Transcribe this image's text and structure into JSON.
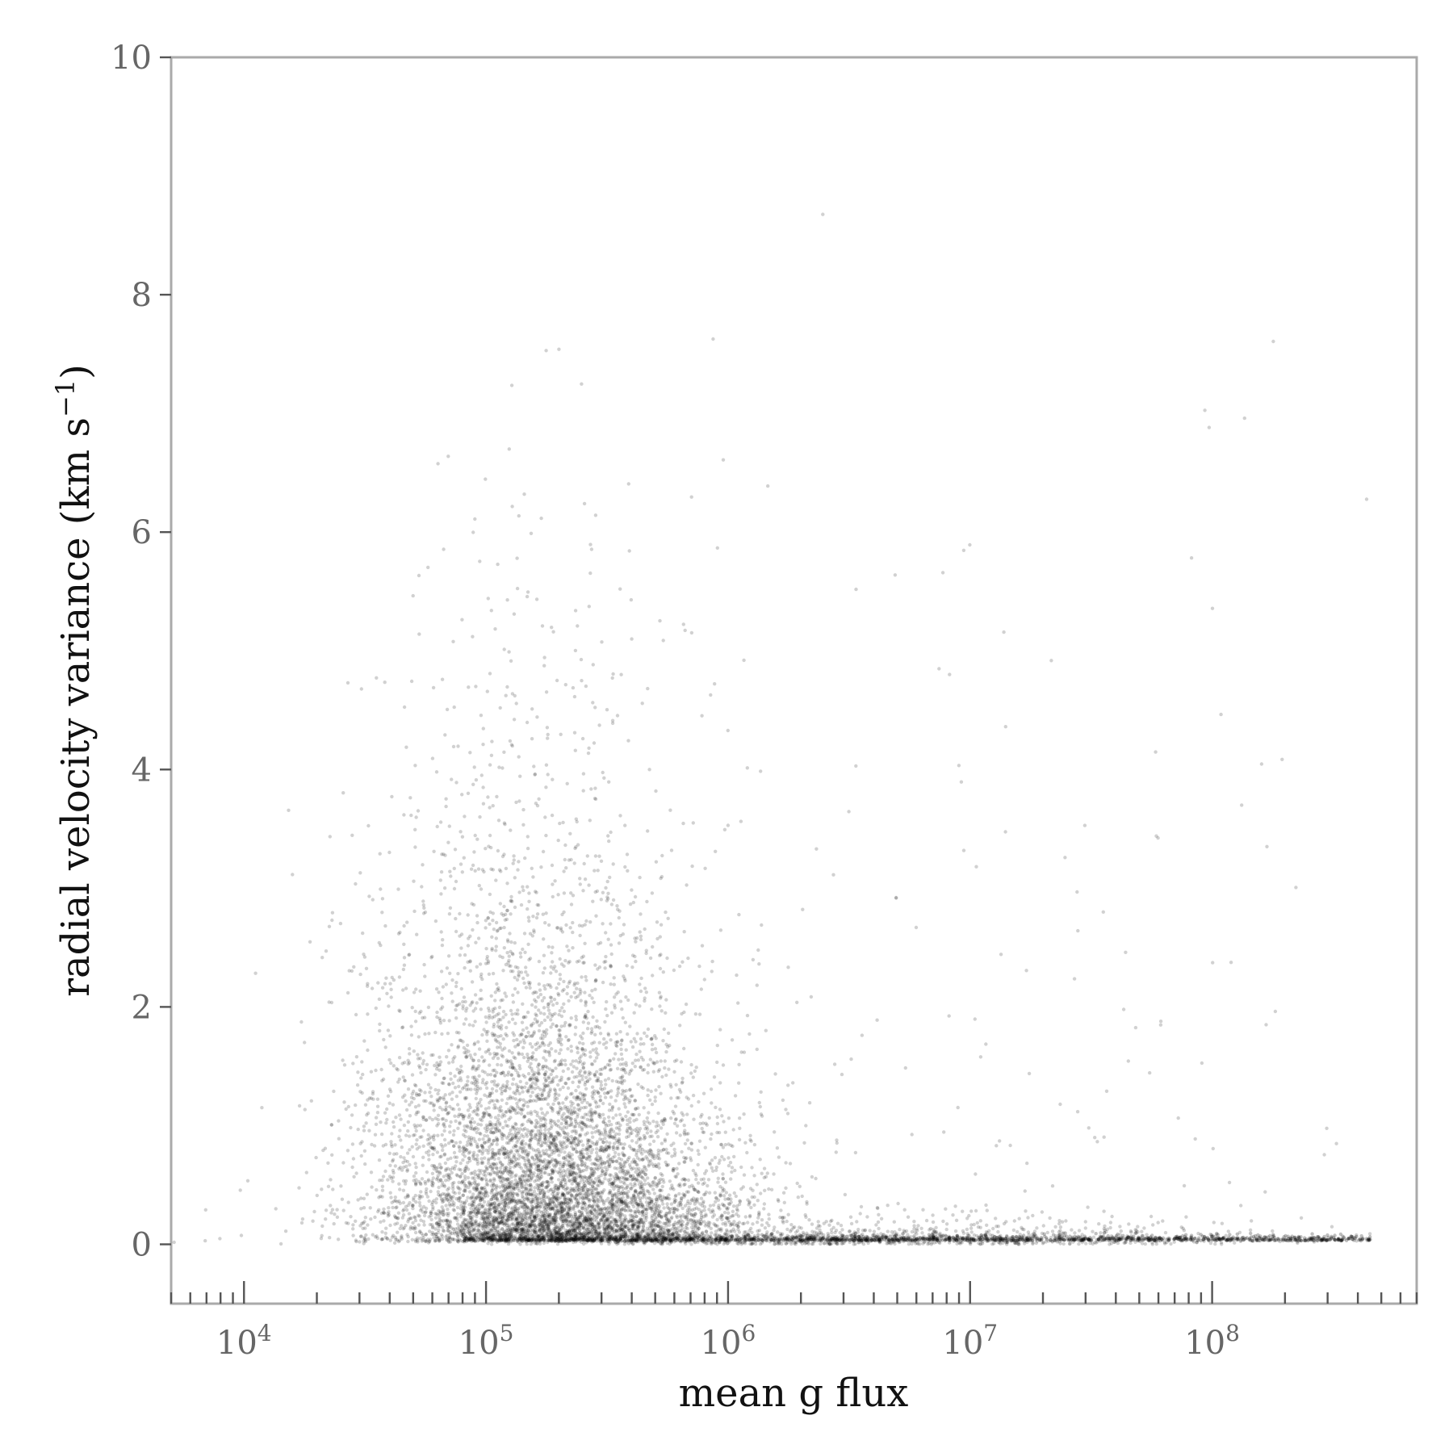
{
  "chart_data": {
    "type": "scatter",
    "title": "",
    "xlabel": "mean g flux",
    "ylabel_parts": {
      "main": "radial velocity variance (km s",
      "sup": "−1",
      "close": ")"
    },
    "x_scale": "log",
    "xlim": [
      5000,
      700000000
    ],
    "ylim": [
      -0.5,
      10
    ],
    "x_ticks": [
      {
        "value": 10000,
        "base": "10",
        "exp": "4"
      },
      {
        "value": 100000,
        "base": "10",
        "exp": "5"
      },
      {
        "value": 1000000,
        "base": "10",
        "exp": "6"
      },
      {
        "value": 10000000,
        "base": "10",
        "exp": "7"
      },
      {
        "value": 100000000,
        "base": "10",
        "exp": "8"
      }
    ],
    "y_ticks": [
      {
        "value": 0,
        "label": "0"
      },
      {
        "value": 2,
        "label": "2"
      },
      {
        "value": 4,
        "label": "4"
      },
      {
        "value": 6,
        "label": "6"
      },
      {
        "value": 8,
        "label": "8"
      },
      {
        "value": 10,
        "label": "10"
      }
    ],
    "grid": false,
    "legend": "none",
    "marker_color": "#000000",
    "series": [
      {
        "points_summary": "dense cloud of many faint points",
        "clusters": [
          {
            "x_center": 150000,
            "x_spread_dex": 0.33,
            "y_min": 0.02,
            "y_max": 10,
            "weight": 0.55,
            "y_decay": 1.1
          },
          {
            "x_center": 300000,
            "x_spread_dex": 0.35,
            "y_min": 0.02,
            "y_max": 2.5,
            "weight": 0.25,
            "y_decay": 0.45
          },
          {
            "x_center": 3000000,
            "x_spread_dex": 0.9,
            "y_min": 0.0,
            "y_max": 0.35,
            "weight": 0.12,
            "y_decay": 0.08
          },
          {
            "x_center": 10000000,
            "x_spread_dex": 1.1,
            "y_min": 0.0,
            "y_max": 10,
            "weight": 0.02,
            "y_decay": 3.0
          }
        ],
        "baseline_y": 0.03,
        "x_max_extent": 450000000
      }
    ]
  }
}
